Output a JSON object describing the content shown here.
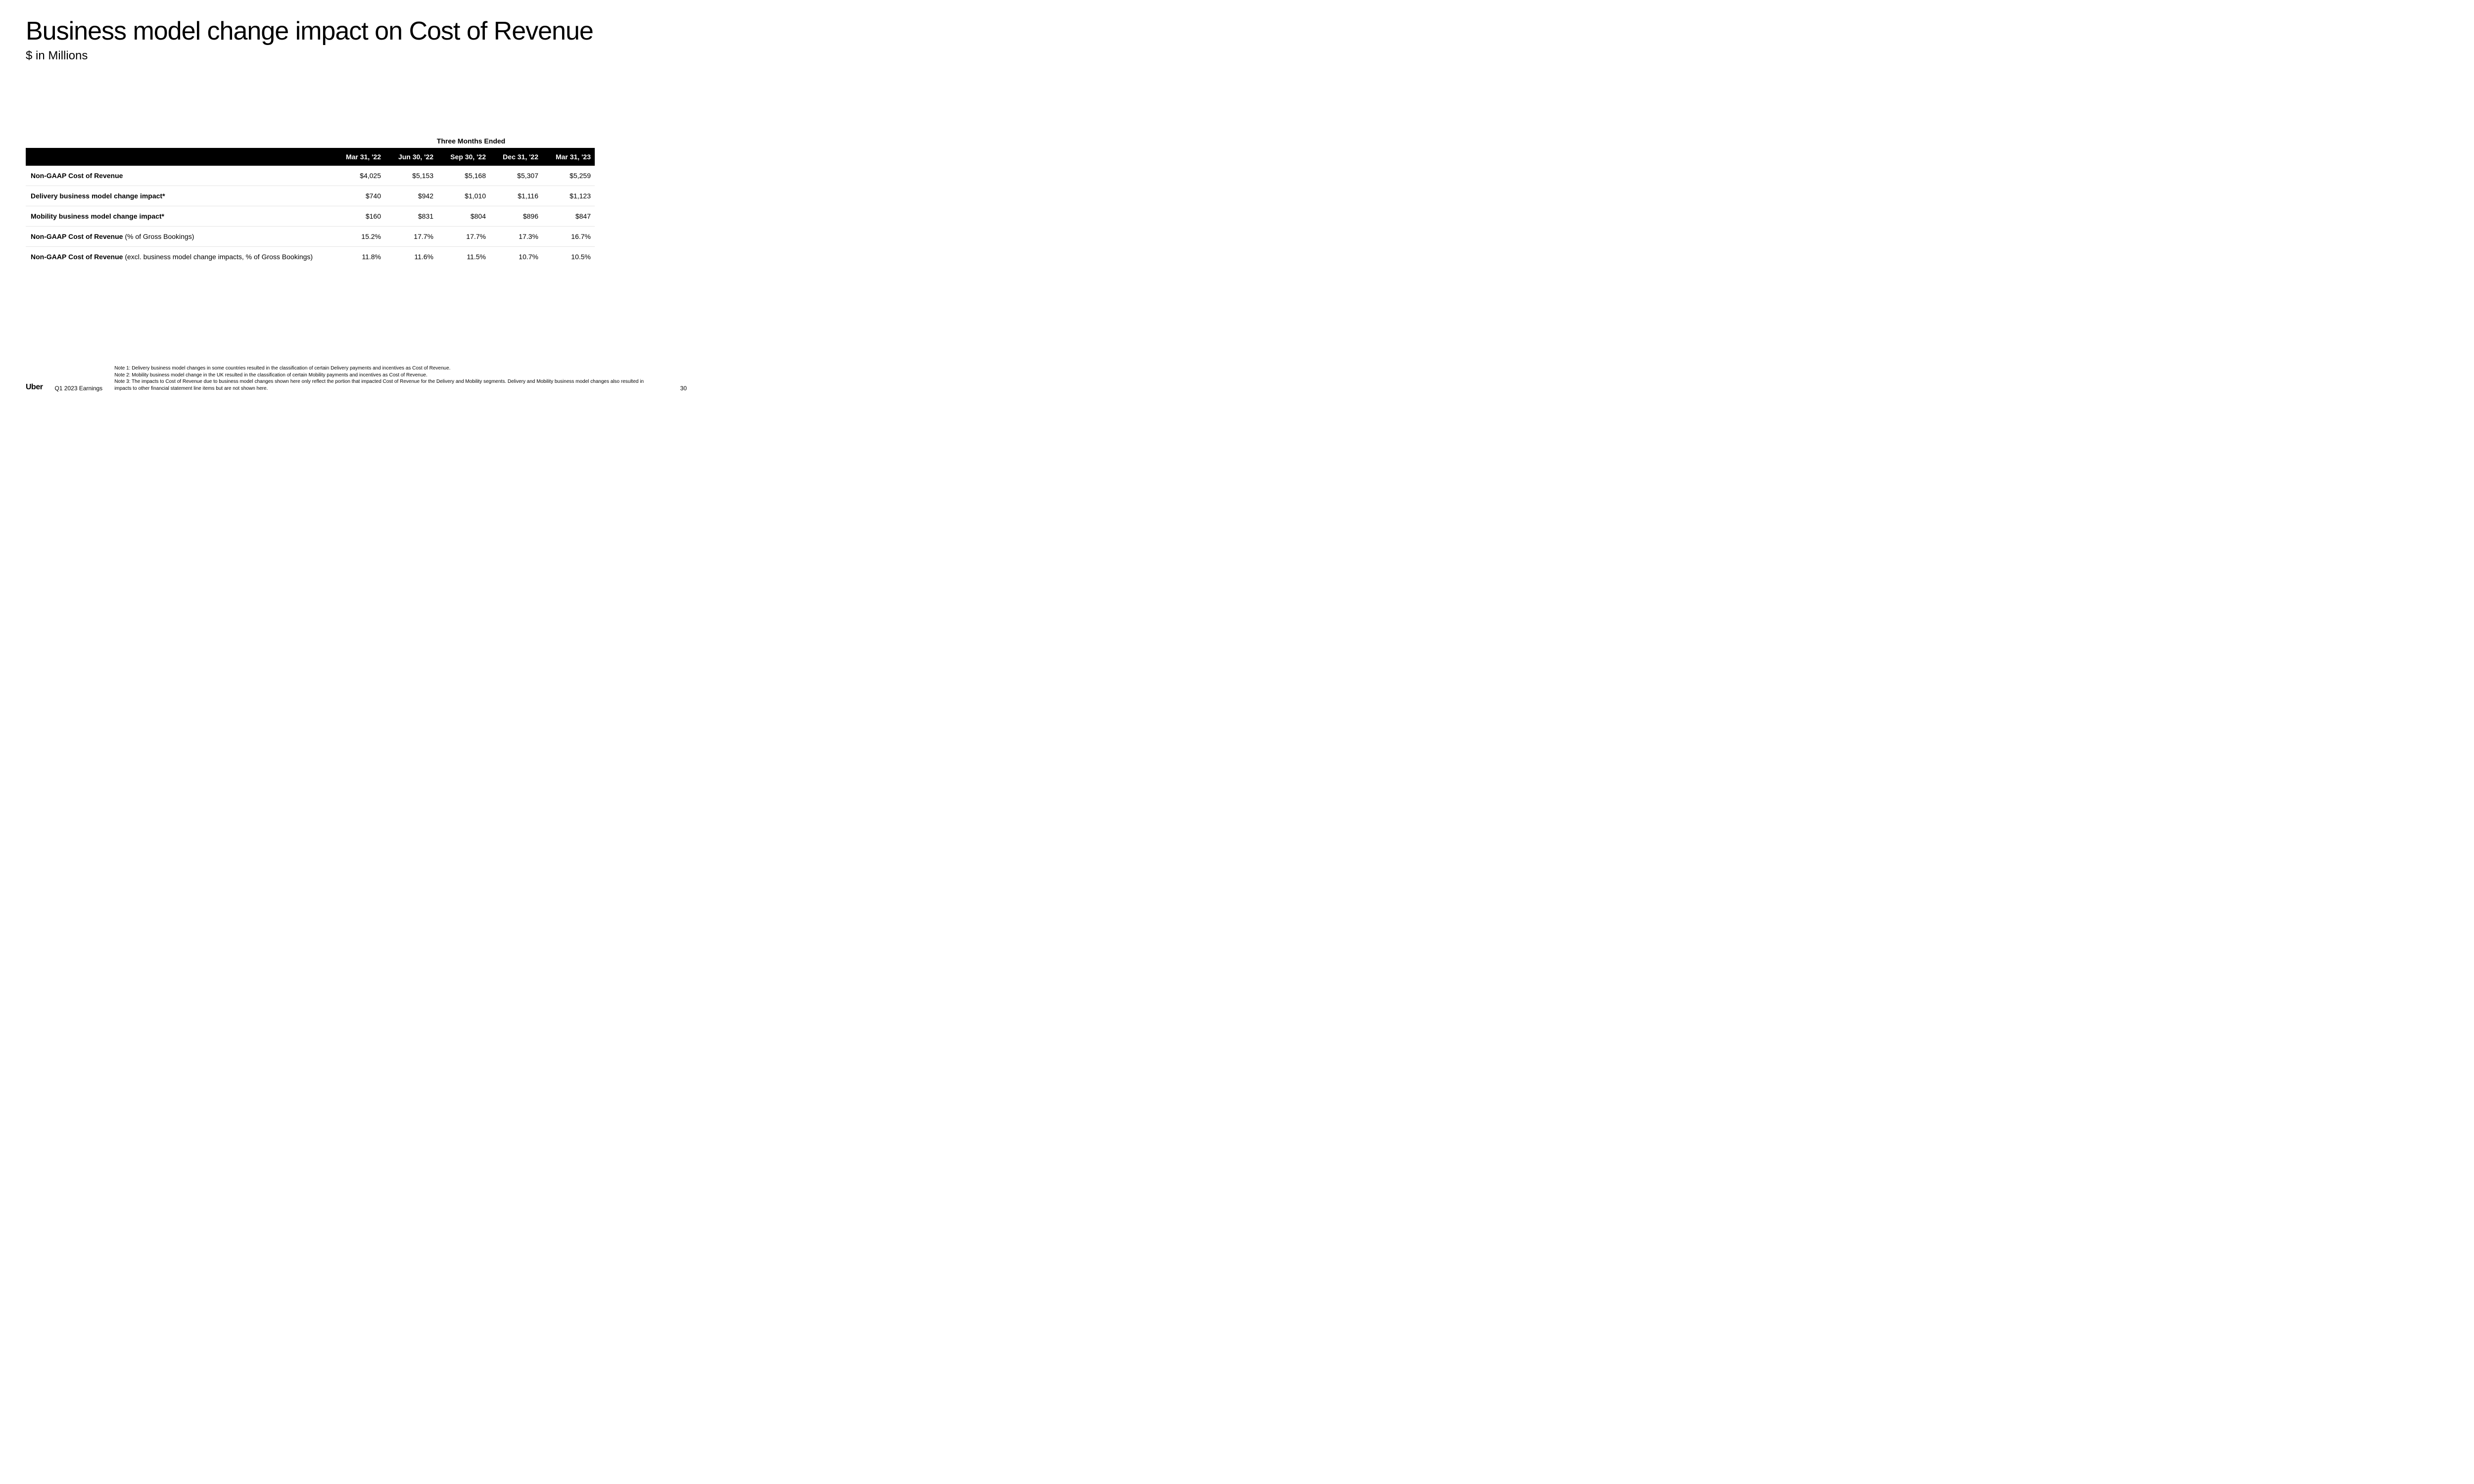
{
  "title": "Business model change impact on Cost of Revenue",
  "subtitle": "$ in Millions",
  "table": {
    "super_header": "Three Months Ended",
    "columns": [
      "Mar 31, '22",
      "Jun 30, '22",
      "Sep 30, '22",
      "Dec 31, '22",
      "Mar 31, '23"
    ],
    "rows": [
      {
        "label_bold": "Non-GAAP Cost of Revenue",
        "label_normal": "",
        "values": [
          "$4,025",
          "$5,153",
          "$5,168",
          "$5,307",
          "$5,259"
        ]
      },
      {
        "label_bold": "Delivery business model change impact*",
        "label_normal": "",
        "values": [
          "$740",
          "$942",
          "$1,010",
          "$1,116",
          "$1,123"
        ]
      },
      {
        "label_bold": "Mobility business model change impact*",
        "label_normal": "",
        "values": [
          "$160",
          "$831",
          "$804",
          "$896",
          "$847"
        ]
      },
      {
        "label_bold": "Non-GAAP Cost of Revenue ",
        "label_normal": " (% of Gross Bookings)",
        "values": [
          "15.2%",
          "17.7%",
          "17.7%",
          "17.3%",
          "16.7%"
        ]
      },
      {
        "label_bold": "Non-GAAP Cost of Revenue",
        "label_normal": " (excl. business model change impacts, % of Gross Bookings)",
        "values": [
          "11.8%",
          "11.6%",
          "11.5%",
          "10.7%",
          "10.5%"
        ]
      }
    ]
  },
  "footer": {
    "logo": "Uber",
    "earnings": "Q1 2023 Earnings",
    "notes": [
      "Note 1: Delivery business model changes in some countries resulted in the classification of certain Delivery payments and incentives as Cost of Revenue.",
      "Note 2: Mobility business model change in the UK resulted in the classification of certain Mobility payments and incentives as Cost of Revenue.",
      "Note 3: The impacts to Cost of Revenue due to business model changes shown here only reflect the portion that impacted Cost of Revenue for the Delivery and Mobility segments. Delivery and Mobility business model changes also resulted in impacts to other financial statement line items but are not shown here."
    ],
    "page": "30"
  },
  "style": {
    "background_color": "#ffffff",
    "text_color": "#000000",
    "header_bg": "#000000",
    "header_fg": "#ffffff",
    "row_border": "#e5e5e5",
    "title_fontsize": 52,
    "subtitle_fontsize": 24,
    "body_fontsize": 14,
    "note_fontsize": 10
  }
}
